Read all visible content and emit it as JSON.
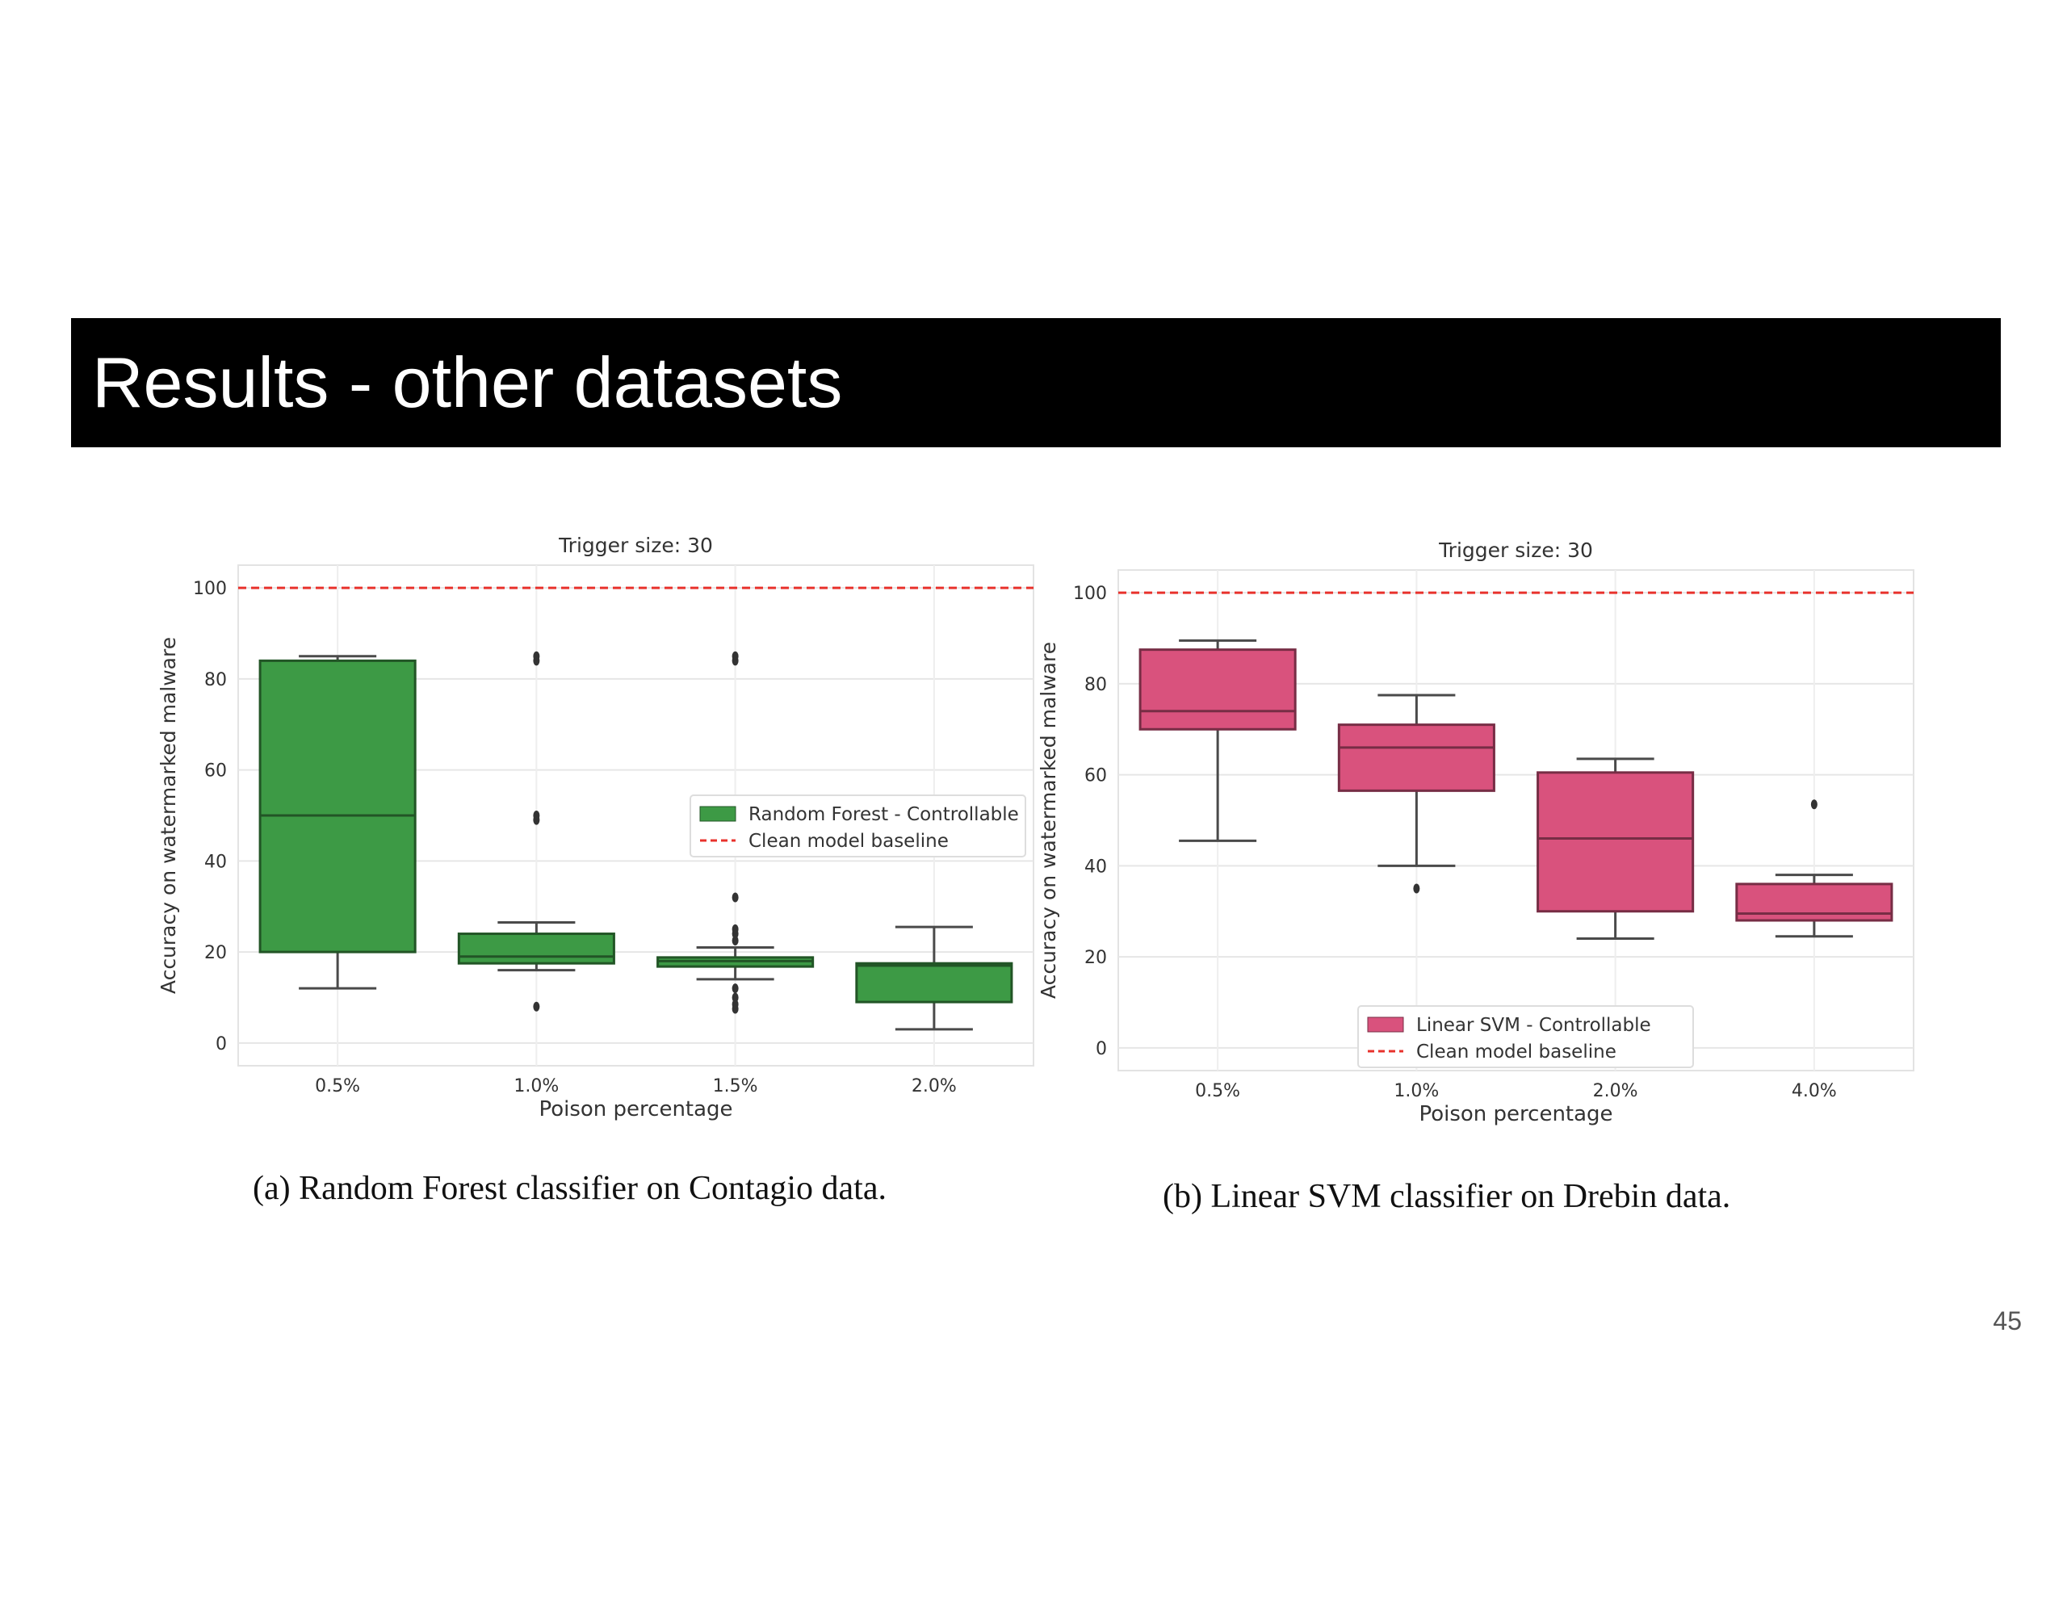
{
  "slide": {
    "title": "Results - other datasets",
    "page_number": "45"
  },
  "captions": [
    "(a) Random Forest classifier on Contagio data.",
    "(b) Linear SVM classifier on Drebin data."
  ],
  "chart_data": [
    {
      "type": "box",
      "title": "Trigger size: 30",
      "xlabel": "Poison percentage",
      "ylabel": "Accuracy on watermarked malware",
      "ylim": [
        -5,
        105
      ],
      "yticks": [
        0,
        20,
        40,
        60,
        80,
        100
      ],
      "grid": true,
      "legend_position": "center-right",
      "color": "#3d9a45",
      "categories": [
        "0.5%",
        "1.0%",
        "1.5%",
        "2.0%"
      ],
      "series": [
        {
          "name": "Random Forest - Controllable",
          "boxes": [
            {
              "min": 12,
              "q1": 20,
              "median": 50,
              "q3": 84,
              "max": 85,
              "outliers": []
            },
            {
              "min": 16,
              "q1": 17.5,
              "median": 19,
              "q3": 24,
              "max": 26.5,
              "outliers": [
                8,
                49,
                50,
                84,
                85
              ]
            },
            {
              "min": 14,
              "q1": 16.8,
              "median": 18,
              "q3": 18.8,
              "max": 21,
              "outliers": [
                7.5,
                8.5,
                10,
                12,
                22.5,
                24,
                25,
                32,
                84,
                85
              ]
            },
            {
              "min": 3,
              "q1": 9,
              "median": 17,
              "q3": 17.5,
              "max": 25.5,
              "outliers": []
            }
          ]
        }
      ],
      "baseline": {
        "name": "Clean model baseline",
        "value": 100,
        "color": "#e8322c"
      }
    },
    {
      "type": "box",
      "title": "Trigger size: 30",
      "xlabel": "Poison percentage",
      "ylabel": "Accuracy on watermarked malware",
      "ylim": [
        -5,
        105
      ],
      "yticks": [
        0,
        20,
        40,
        60,
        80,
        100
      ],
      "grid": true,
      "legend_position": "bottom-center",
      "color": "#d9527d",
      "categories": [
        "0.5%",
        "1.0%",
        "2.0%",
        "4.0%"
      ],
      "series": [
        {
          "name": "Linear SVM - Controllable",
          "boxes": [
            {
              "min": 45.5,
              "q1": 70,
              "median": 74,
              "q3": 87.5,
              "max": 89.5,
              "outliers": []
            },
            {
              "min": 40,
              "q1": 56.5,
              "median": 66,
              "q3": 71,
              "max": 77.5,
              "outliers": [
                35
              ]
            },
            {
              "min": 24,
              "q1": 30,
              "median": 46,
              "q3": 60.5,
              "max": 63.5,
              "outliers": []
            },
            {
              "min": 24.5,
              "q1": 28,
              "median": 29.5,
              "q3": 36,
              "max": 38,
              "outliers": [
                53.5
              ]
            }
          ]
        }
      ],
      "baseline": {
        "name": "Clean model baseline",
        "value": 100,
        "color": "#e8322c"
      }
    }
  ]
}
